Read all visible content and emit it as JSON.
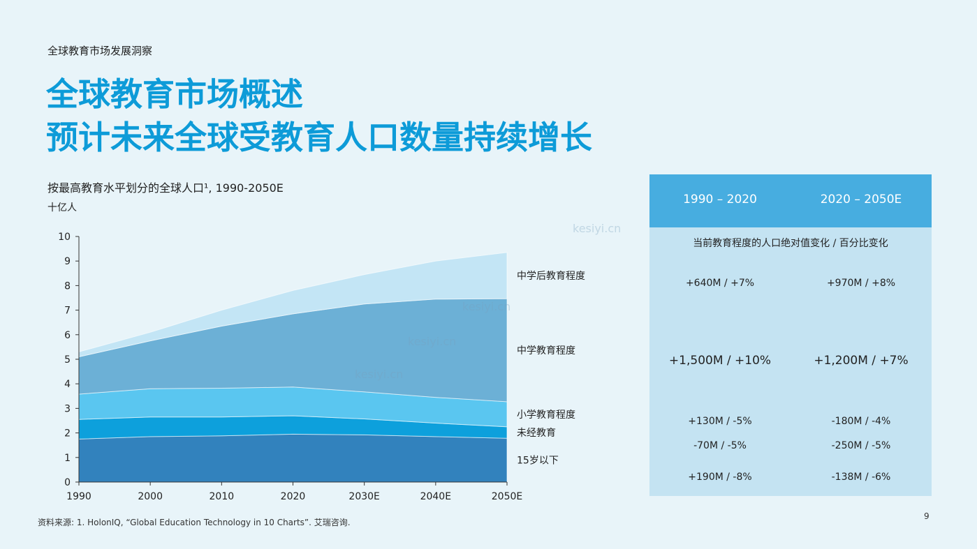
{
  "header": {
    "kicker": "全球教育市场发展洞察",
    "title_line1": "全球教育市场概述",
    "title_line2": "预计未来全球受教育人口数量持续增长"
  },
  "chart_title": "按最高教育水平划分的全球人口¹, 1990-2050E",
  "chart_unit": "十亿人",
  "chart_data": {
    "type": "area",
    "stacked": true,
    "x": [
      "1990",
      "2000",
      "2010",
      "2020",
      "2030E",
      "2040E",
      "2050E"
    ],
    "ylim": [
      0,
      10
    ],
    "yticks": [
      0,
      1,
      2,
      3,
      4,
      5,
      6,
      7,
      8,
      9,
      10
    ],
    "grid": false,
    "legend": "right",
    "series": [
      {
        "name": "15岁以下",
        "color": "#3282bd",
        "values": [
          1.75,
          1.85,
          1.88,
          1.95,
          1.92,
          1.85,
          1.78
        ]
      },
      {
        "name": "未经教育",
        "color": "#0da0dc",
        "values": [
          0.8,
          0.8,
          0.77,
          0.75,
          0.65,
          0.55,
          0.47
        ]
      },
      {
        "name": "小学教育程度",
        "color": "#5ac6f0",
        "values": [
          1.03,
          1.15,
          1.17,
          1.17,
          1.1,
          1.05,
          1.02
        ]
      },
      {
        "name": "中学教育程度",
        "color": "#6cb0d6",
        "values": [
          1.52,
          1.95,
          2.53,
          2.98,
          3.58,
          4.0,
          4.2
        ]
      },
      {
        "name": "中学后教育程度",
        "color": "#c3e5f5",
        "values": [
          0.2,
          0.35,
          0.65,
          0.95,
          1.2,
          1.55,
          1.88
        ]
      }
    ]
  },
  "stats": {
    "headers": [
      "1990 – 2020",
      "2020 – 2050E"
    ],
    "caption": "当前教育程度的人口绝对值变化 / 百分比变化",
    "rows": [
      [
        "+640M / +7%",
        "+970M / +8%"
      ],
      [
        "+1,500M / +10%",
        "+1,200M / +7%"
      ],
      [
        "+130M / -5%",
        "-180M / -4%"
      ],
      [
        "-70M / -5%",
        "-250M / -5%"
      ],
      [
        "+190M / -8%",
        "-138M / -6%"
      ]
    ]
  },
  "source": "资料来源: 1. HolonIQ, “Global Education Technology in 10 Charts”. 艾瑞咨询.",
  "page_number": "9",
  "watermark": "kesiyi.cn"
}
